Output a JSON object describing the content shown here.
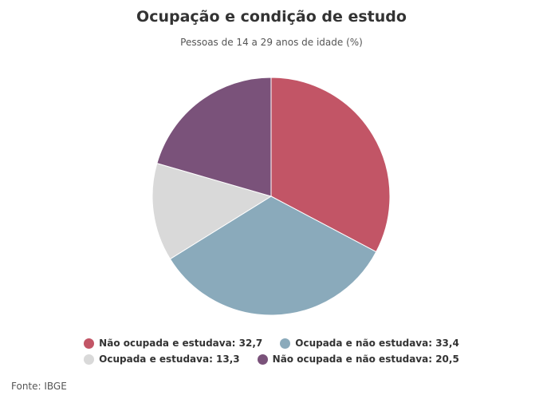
{
  "chart_data": {
    "type": "pie",
    "title": "Ocupação e condição de estudo",
    "subtitle": "Pessoas de 14 a 29 anos de idade (%)",
    "slices": [
      {
        "label": "Não ocupada e estudava",
        "value": 32.7,
        "color": "#c25566"
      },
      {
        "label": "Ocupada e não estudava",
        "value": 33.4,
        "color": "#8aaabb"
      },
      {
        "label": "Ocupada e estudava",
        "value": 13.3,
        "color": "#d9d9d9"
      },
      {
        "label": "Não ocupada e não estudava",
        "value": 20.5,
        "color": "#7a527a"
      }
    ],
    "legend_placement": "bottom",
    "legend_items": [
      "Não ocupada e estudava: 32,7",
      "Ocupada e não estudava: 33,4",
      "Ocupada e estudava: 13,3",
      "Não ocupada e não estudava: 20,5"
    ]
  },
  "source": "Fonte: IBGE"
}
